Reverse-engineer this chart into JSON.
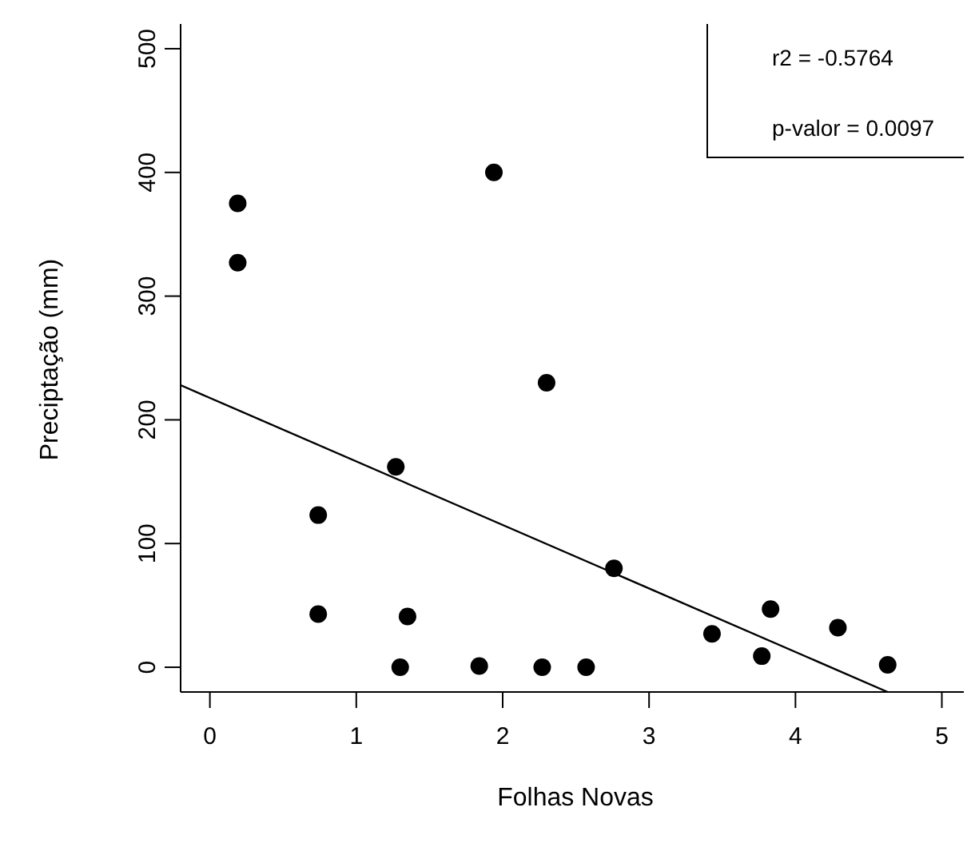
{
  "chart_data": {
    "type": "scatter",
    "xlabel": "Folhas Novas",
    "ylabel": "Preciptação (mm)",
    "annotations": [
      "r2 = -0.5764",
      "p-valor = 0.0097"
    ],
    "xlim": [
      -0.2,
      5.15
    ],
    "ylim": [
      -20,
      520
    ],
    "xticks": [
      0,
      1,
      2,
      3,
      4,
      5
    ],
    "yticks": [
      0,
      100,
      200,
      300,
      400,
      500
    ],
    "marker": "circle",
    "series": [
      {
        "color": "#000000",
        "x": [
          0.19,
          0.19,
          1.94,
          2.3,
          0.74,
          1.27,
          0.74,
          1.35,
          1.3,
          1.84,
          2.27,
          2.57,
          2.76,
          3.43,
          3.77,
          3.83,
          4.29,
          4.63
        ],
        "values": [
          375,
          327,
          400,
          230,
          123,
          162,
          43,
          41,
          0,
          1,
          0,
          0,
          80,
          27,
          9,
          47,
          32,
          2
        ]
      },
      {
        "type": "line",
        "marker": "none",
        "color": "#000000",
        "x": [
          -0.2,
          4.63
        ],
        "values": [
          228,
          -20
        ]
      }
    ]
  }
}
